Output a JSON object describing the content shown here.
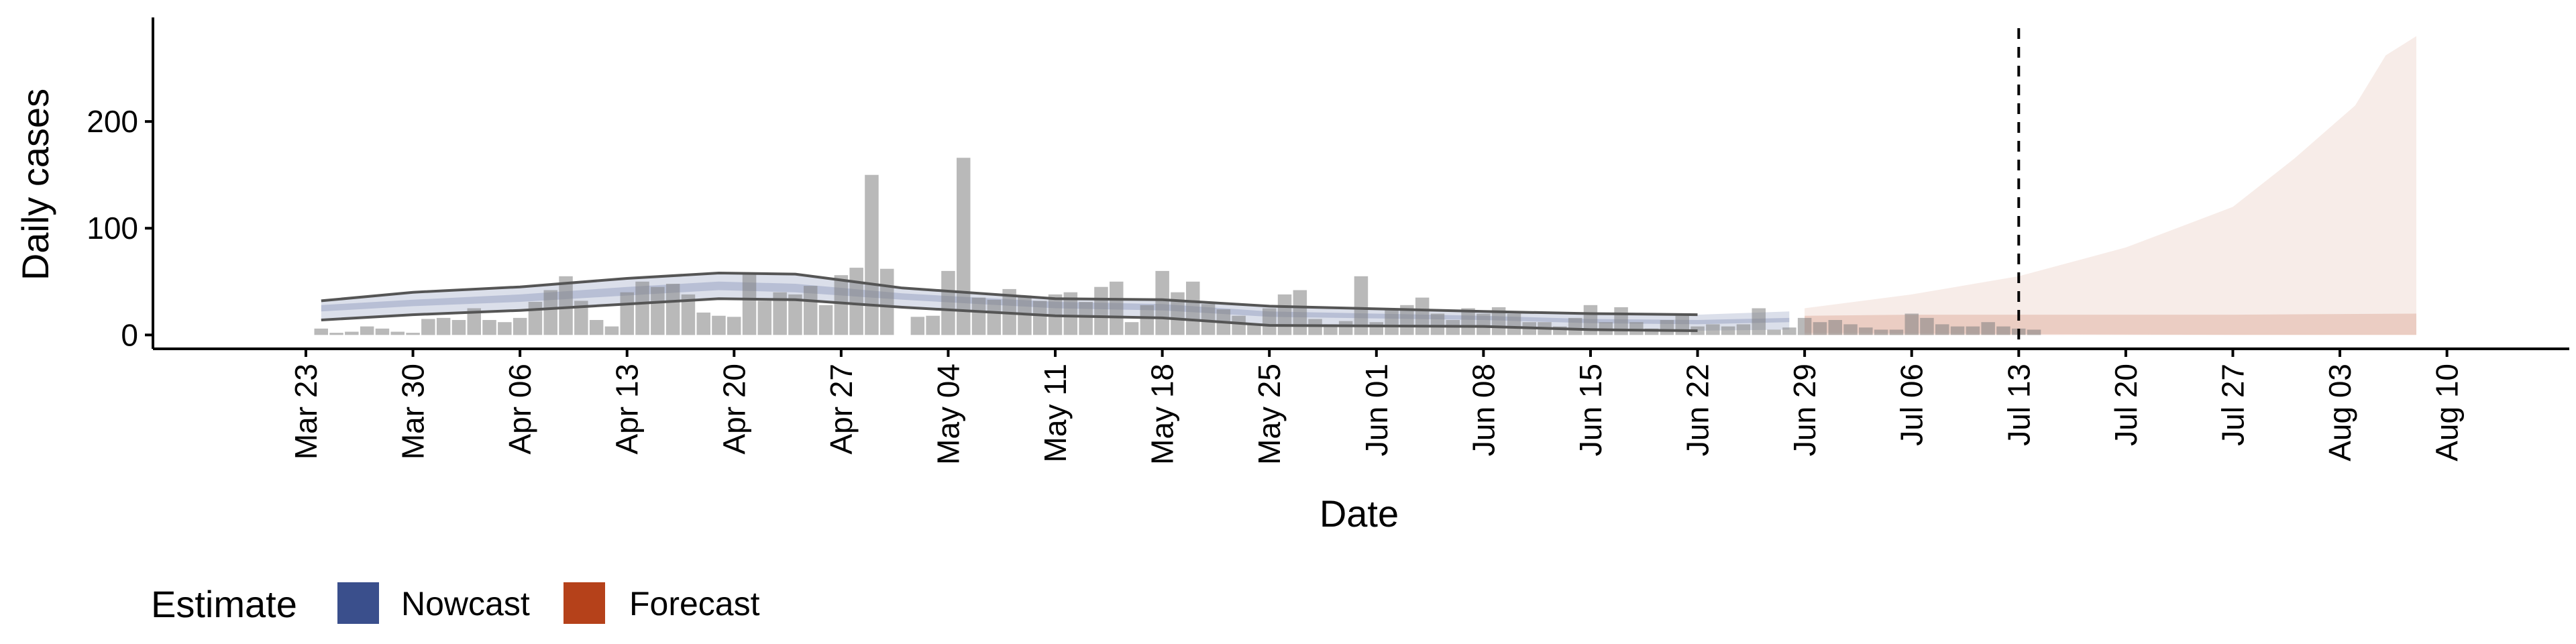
{
  "chart_data": {
    "type": "bar",
    "xlabel": "Date",
    "ylabel": "Daily cases",
    "x_range": [
      "2020-03-13",
      "2020-08-18"
    ],
    "y_range": [
      -13,
      295
    ],
    "y_ticks": [
      0,
      100,
      200
    ],
    "y_tick_labels": [
      "0",
      "100",
      "200"
    ],
    "x_ticks": [
      "2020-03-23",
      "2020-03-30",
      "2020-04-06",
      "2020-04-13",
      "2020-04-20",
      "2020-04-27",
      "2020-05-04",
      "2020-05-11",
      "2020-05-18",
      "2020-05-25",
      "2020-06-01",
      "2020-06-08",
      "2020-06-15",
      "2020-06-22",
      "2020-06-29",
      "2020-07-06",
      "2020-07-13",
      "2020-07-20",
      "2020-07-27",
      "2020-08-03",
      "2020-08-10"
    ],
    "x_tick_labels": [
      "Mar 23",
      "Mar 30",
      "Apr 06",
      "Apr 13",
      "Apr 20",
      "Apr 27",
      "May 04",
      "May 11",
      "May 18",
      "May 25",
      "Jun 01",
      "Jun 08",
      "Jun 15",
      "Jun 22",
      "Jun 29",
      "Jul 06",
      "Jul 13",
      "Jul 20",
      "Jul 27",
      "Aug 03",
      "Aug 10"
    ],
    "bars": {
      "start_date": "2020-03-24",
      "values": [
        6,
        2,
        3,
        8,
        6,
        3,
        2,
        15,
        16,
        14,
        25,
        14,
        12,
        16,
        31,
        42,
        55,
        32,
        14,
        8,
        40,
        50,
        45,
        48,
        38,
        21,
        18,
        17,
        58,
        32,
        40,
        38,
        46,
        28,
        56,
        63,
        150,
        62,
        0,
        17,
        18,
        60,
        166,
        35,
        33,
        43,
        37,
        32,
        38,
        40,
        31,
        45,
        50,
        12,
        28,
        60,
        40,
        50,
        29,
        24,
        18,
        10,
        25,
        38,
        42,
        15,
        10,
        13,
        55,
        12,
        25,
        28,
        35,
        20,
        14,
        25,
        20,
        26,
        20,
        12,
        12,
        8,
        16,
        28,
        12,
        26,
        12,
        6,
        14,
        18,
        8,
        10,
        8,
        10,
        25,
        5,
        7,
        16,
        12,
        14,
        10,
        7,
        5,
        5,
        20,
        16,
        10,
        8,
        8,
        12,
        8,
        6,
        5
      ],
      "color": "#808080"
    },
    "vertical_line": "2020-07-13",
    "nowcast": {
      "color": "#3a4f8c",
      "end_date": "2020-06-28",
      "outer_lower": [
        {
          "x": "2020-03-24",
          "y": 14
        },
        {
          "x": "2020-03-30",
          "y": 19
        },
        {
          "x": "2020-04-06",
          "y": 23
        },
        {
          "x": "2020-04-13",
          "y": 29
        },
        {
          "x": "2020-04-19",
          "y": 34
        },
        {
          "x": "2020-04-24",
          "y": 33
        },
        {
          "x": "2020-05-01",
          "y": 26
        },
        {
          "x": "2020-05-11",
          "y": 18
        },
        {
          "x": "2020-05-18",
          "y": 16
        },
        {
          "x": "2020-05-25",
          "y": 9
        },
        {
          "x": "2020-06-08",
          "y": 8
        },
        {
          "x": "2020-06-15",
          "y": 5
        },
        {
          "x": "2020-06-22",
          "y": 4
        },
        {
          "x": "2020-06-28",
          "y": 5
        }
      ],
      "outer_upper": [
        {
          "x": "2020-03-24",
          "y": 32
        },
        {
          "x": "2020-03-30",
          "y": 40
        },
        {
          "x": "2020-04-06",
          "y": 45
        },
        {
          "x": "2020-04-13",
          "y": 53
        },
        {
          "x": "2020-04-19",
          "y": 58
        },
        {
          "x": "2020-04-24",
          "y": 57
        },
        {
          "x": "2020-05-01",
          "y": 44
        },
        {
          "x": "2020-05-11",
          "y": 34
        },
        {
          "x": "2020-05-18",
          "y": 33
        },
        {
          "x": "2020-05-25",
          "y": 27
        },
        {
          "x": "2020-06-08",
          "y": 22
        },
        {
          "x": "2020-06-15",
          "y": 20
        },
        {
          "x": "2020-06-22",
          "y": 19
        },
        {
          "x": "2020-06-28",
          "y": 22
        }
      ],
      "inner_lower": [
        {
          "x": "2020-03-24",
          "y": 22
        },
        {
          "x": "2020-03-30",
          "y": 27
        },
        {
          "x": "2020-04-06",
          "y": 31
        },
        {
          "x": "2020-04-13",
          "y": 37
        },
        {
          "x": "2020-04-19",
          "y": 42
        },
        {
          "x": "2020-04-24",
          "y": 40
        },
        {
          "x": "2020-05-01",
          "y": 33
        },
        {
          "x": "2020-05-11",
          "y": 25
        },
        {
          "x": "2020-05-18",
          "y": 23
        },
        {
          "x": "2020-05-25",
          "y": 17
        },
        {
          "x": "2020-06-08",
          "y": 14
        },
        {
          "x": "2020-06-15",
          "y": 11
        },
        {
          "x": "2020-06-22",
          "y": 10
        },
        {
          "x": "2020-06-28",
          "y": 12
        }
      ],
      "inner_upper": [
        {
          "x": "2020-03-24",
          "y": 28
        },
        {
          "x": "2020-03-30",
          "y": 33
        },
        {
          "x": "2020-04-06",
          "y": 38
        },
        {
          "x": "2020-04-13",
          "y": 45
        },
        {
          "x": "2020-04-19",
          "y": 50
        },
        {
          "x": "2020-04-24",
          "y": 48
        },
        {
          "x": "2020-05-01",
          "y": 39
        },
        {
          "x": "2020-05-11",
          "y": 31
        },
        {
          "x": "2020-05-18",
          "y": 29
        },
        {
          "x": "2020-05-25",
          "y": 22
        },
        {
          "x": "2020-06-08",
          "y": 18
        },
        {
          "x": "2020-06-15",
          "y": 15
        },
        {
          "x": "2020-06-22",
          "y": 14
        },
        {
          "x": "2020-06-28",
          "y": 16
        }
      ],
      "line_upper": [
        {
          "x": "2020-03-24",
          "y": 32
        },
        {
          "x": "2020-03-30",
          "y": 40
        },
        {
          "x": "2020-04-06",
          "y": 45
        },
        {
          "x": "2020-04-13",
          "y": 53
        },
        {
          "x": "2020-04-19",
          "y": 58
        },
        {
          "x": "2020-04-24",
          "y": 57
        },
        {
          "x": "2020-05-01",
          "y": 44
        },
        {
          "x": "2020-05-11",
          "y": 34
        },
        {
          "x": "2020-05-18",
          "y": 33
        },
        {
          "x": "2020-05-25",
          "y": 27
        },
        {
          "x": "2020-06-08",
          "y": 22
        },
        {
          "x": "2020-06-15",
          "y": 20
        },
        {
          "x": "2020-06-22",
          "y": 19
        }
      ],
      "line_lower": [
        {
          "x": "2020-03-24",
          "y": 14
        },
        {
          "x": "2020-03-30",
          "y": 19
        },
        {
          "x": "2020-04-06",
          "y": 23
        },
        {
          "x": "2020-04-13",
          "y": 29
        },
        {
          "x": "2020-04-19",
          "y": 34
        },
        {
          "x": "2020-04-24",
          "y": 33
        },
        {
          "x": "2020-05-01",
          "y": 26
        },
        {
          "x": "2020-05-11",
          "y": 18
        },
        {
          "x": "2020-05-18",
          "y": 16
        },
        {
          "x": "2020-05-25",
          "y": 9
        },
        {
          "x": "2020-06-08",
          "y": 8
        },
        {
          "x": "2020-06-15",
          "y": 5
        },
        {
          "x": "2020-06-22",
          "y": 4
        }
      ]
    },
    "forecast": {
      "color": "#b5411a",
      "outer_lower": [
        {
          "x": "2020-06-29",
          "y": 2
        },
        {
          "x": "2020-07-13",
          "y": 1
        },
        {
          "x": "2020-07-27",
          "y": 0
        },
        {
          "x": "2020-08-08",
          "y": 0
        }
      ],
      "outer_upper": [
        {
          "x": "2020-06-29",
          "y": 25
        },
        {
          "x": "2020-07-06",
          "y": 38
        },
        {
          "x": "2020-07-13",
          "y": 55
        },
        {
          "x": "2020-07-20",
          "y": 82
        },
        {
          "x": "2020-07-27",
          "y": 120
        },
        {
          "x": "2020-07-31",
          "y": 165
        },
        {
          "x": "2020-08-02",
          "y": 190
        },
        {
          "x": "2020-08-04",
          "y": 215
        },
        {
          "x": "2020-08-06",
          "y": 262
        },
        {
          "x": "2020-08-08",
          "y": 280
        }
      ],
      "inner_lower": [
        {
          "x": "2020-06-29",
          "y": 0
        },
        {
          "x": "2020-08-08",
          "y": 0
        }
      ],
      "inner_upper": [
        {
          "x": "2020-06-29",
          "y": 18
        },
        {
          "x": "2020-07-06",
          "y": 19
        },
        {
          "x": "2020-07-13",
          "y": 19
        },
        {
          "x": "2020-07-27",
          "y": 19
        },
        {
          "x": "2020-08-08",
          "y": 20
        }
      ]
    },
    "legend": {
      "title": "Estimate",
      "position": "bottom-left",
      "items": [
        {
          "label": "Nowcast",
          "color": "#3a4f8c"
        },
        {
          "label": "Forecast",
          "color": "#b5411a"
        }
      ]
    },
    "grid": false
  }
}
